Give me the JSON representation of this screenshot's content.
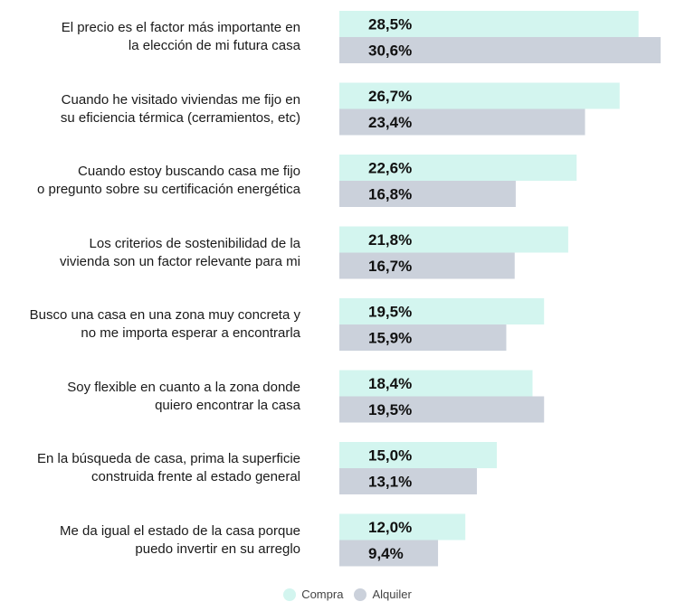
{
  "chart_data": {
    "type": "bar",
    "orientation": "horizontal",
    "categories": [
      "El precio es el factor más importante en la elección de mi futura casa",
      "Cuando he visitado viviendas me fijo en su eficiencia térmica (cerramientos, etc)",
      "Cuando estoy buscando casa me fijo o pregunto sobre su certificación energética",
      "Los criterios de sostenibilidad de la vivienda son un factor relevante para mi",
      "Busco una casa en una zona muy concreta y no me importa esperar a encontrarla",
      "Soy flexible en cuanto a la zona donde quiero encontrar la casa",
      "En la búsqueda de casa, prima la superficie construida frente al estado general",
      "Me da igual el estado de la casa porque puedo invertir en su arreglo"
    ],
    "category_lines": [
      [
        "El precio es el factor más importante en",
        "la elección de mi futura casa"
      ],
      [
        "Cuando he visitado viviendas me fijo en",
        "su eficiencia térmica (cerramientos, etc)"
      ],
      [
        "Cuando estoy buscando casa me fijo",
        "o pregunto sobre su certificación energética"
      ],
      [
        "Los criterios de sostenibilidad de la",
        "vivienda son un factor relevante para mi"
      ],
      [
        "Busco una casa en una zona muy concreta y",
        "no me importa esperar a encontrarla"
      ],
      [
        "Soy flexible en cuanto a la zona donde",
        "quiero encontrar la casa"
      ],
      [
        "En la búsqueda de casa, prima la superficie",
        "construida frente al estado general"
      ],
      [
        "Me da igual el estado de la casa porque",
        "puedo invertir en su arreglo"
      ]
    ],
    "series": [
      {
        "name": "Compra",
        "color": "#d3f5ef",
        "values": [
          28.5,
          26.7,
          22.6,
          21.8,
          19.5,
          18.4,
          15.0,
          12.0
        ],
        "labels": [
          "28,5%",
          "26,7%",
          "22,6%",
          "21,8%",
          "19,5%",
          "18,4%",
          "15,0%",
          "12,0%"
        ]
      },
      {
        "name": "Alquiler",
        "color": "#cbd1db",
        "values": [
          30.6,
          23.4,
          16.8,
          16.7,
          15.9,
          19.5,
          13.1,
          9.4
        ],
        "labels": [
          "30,6%",
          "23,4%",
          "16,8%",
          "16,7%",
          "15,9%",
          "19,5%",
          "13,1%",
          "9,4%"
        ]
      }
    ],
    "xlim": [
      0,
      30.6
    ],
    "grid": false,
    "legend": "bottom-center"
  }
}
